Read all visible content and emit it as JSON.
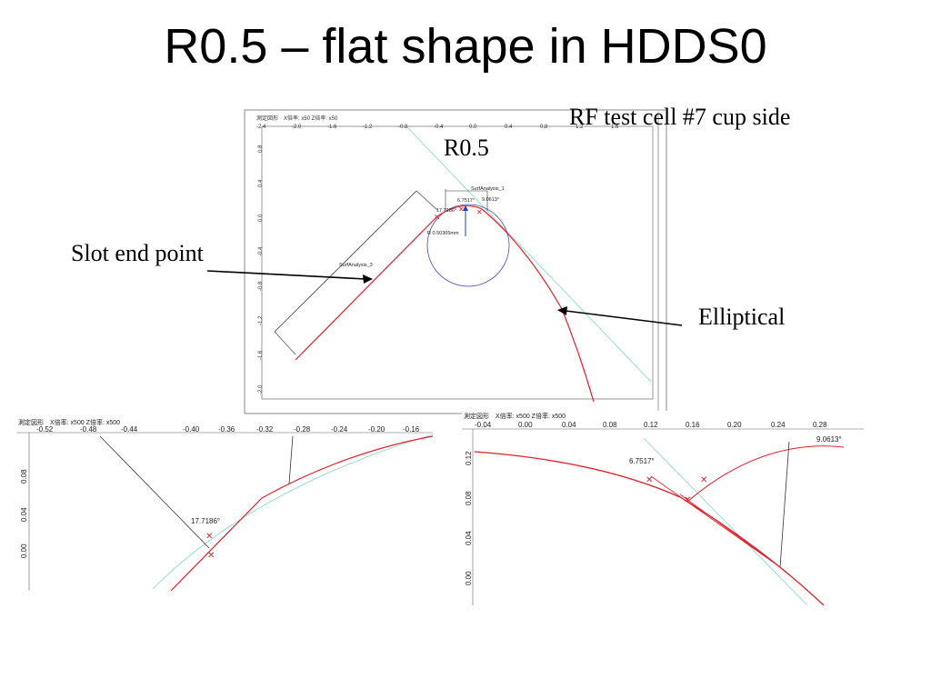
{
  "slide": {
    "title": "R0.5 – flat shape in HDDS0",
    "labels": {
      "rf_cell": "RF test cell #7 cup side",
      "r05": "R0.5",
      "slot_end": "Slot end point",
      "elliptical": "Elliptical"
    }
  },
  "main_plot": {
    "header": "測定図形　X倍率: x50  Z倍率: x50",
    "x_ticks": [
      "-2.4",
      "-2.0",
      "-1.6",
      "-1.2",
      "-0.8",
      "-0.4",
      "0.0",
      "0.4",
      "0.8",
      "1.2",
      "1.6"
    ],
    "y_ticks": [
      "0.8",
      "0.4",
      "0.0",
      "-0.4",
      "-0.8",
      "-1.2",
      "-1.6",
      "-2.0"
    ],
    "annotations": {
      "surf1": "SurfAnalysis_1",
      "angle1": "6.7517°",
      "angle2": "9.0613°",
      "angle3": "17.7186°",
      "radius": "R 0.50305mm",
      "surf3": "SurfAnalysis_3"
    }
  },
  "left_zoom": {
    "header": "測定図形　X倍率: x500  Z倍率: x500",
    "x_ticks": [
      "-0.52",
      "-0.48",
      "-0.44",
      "-0.40",
      "-0.36",
      "-0.32",
      "-0.28",
      "-0.24",
      "-0.20",
      "-0.16"
    ],
    "y_ticks": [
      "0.08",
      "0.04",
      "0.00"
    ],
    "angle": "17.7186°"
  },
  "right_zoom": {
    "header": "測定図形　X倍率: x500  Z倍率: x500",
    "x_ticks": [
      "-0.04",
      "0.00",
      "0.04",
      "0.08",
      "0.12",
      "0.16",
      "0.20",
      "0.24",
      "0.28"
    ],
    "y_ticks": [
      "0.12",
      "0.08",
      "0.04",
      "0.00"
    ],
    "angle1": "6.7517°",
    "angle2": "9.0613°"
  },
  "colors": {
    "profile": "#e0202a",
    "circle": "#4a4ab8",
    "arrow": "#1a3fd0",
    "guide": "#7fd6c6"
  }
}
